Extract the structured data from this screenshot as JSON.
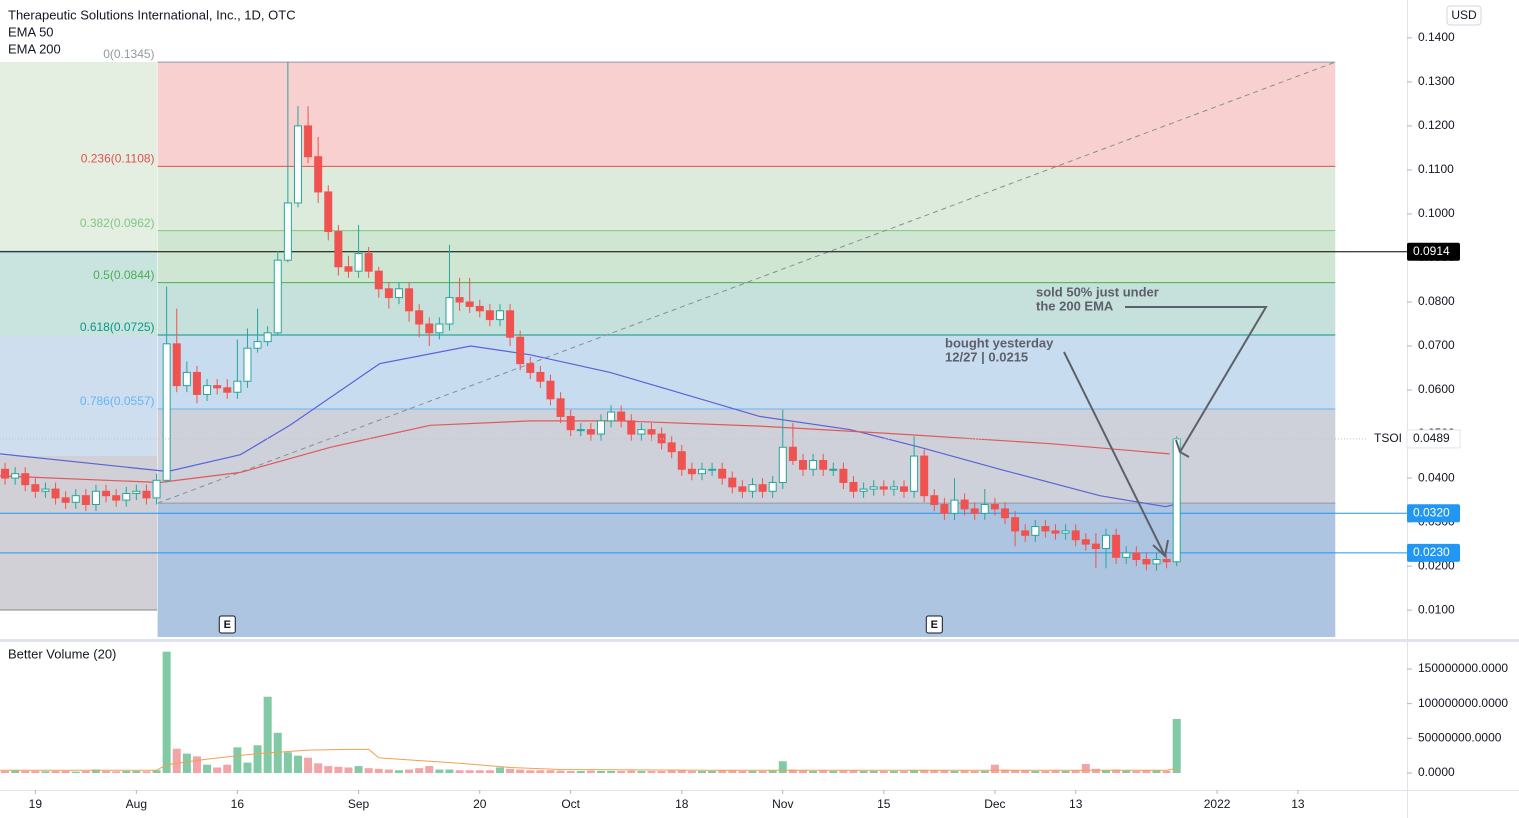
{
  "chart_data": {
    "type": "candlestick",
    "title": "Therapeutic Solutions International, Inc., 1D, OTC",
    "currency": "USD",
    "symbol": "TSOI",
    "last_price": 0.0489,
    "xlim": [
      -0.5,
      138.8
    ],
    "ylim": [
      0.0039,
      0.1486
    ],
    "xticks": [
      {
        "value": 3,
        "label": "19"
      },
      {
        "value": 13,
        "label": "Aug"
      },
      {
        "value": 23,
        "label": "16"
      },
      {
        "value": 35,
        "label": "Sep"
      },
      {
        "value": 47,
        "label": "20"
      },
      {
        "value": 56,
        "label": "Oct"
      },
      {
        "value": 67,
        "label": "18"
      },
      {
        "value": 77,
        "label": "Nov"
      },
      {
        "value": 87,
        "label": "15"
      },
      {
        "value": 98,
        "label": "Dec"
      },
      {
        "value": 106,
        "label": "13"
      },
      {
        "value": 120,
        "label": "2022"
      },
      {
        "value": 128,
        "label": "13"
      }
    ],
    "yticks": [
      {
        "value": 0.01,
        "label": "0.0100"
      },
      {
        "value": 0.02,
        "label": "0.0200"
      },
      {
        "value": 0.03,
        "label": "0.0300"
      },
      {
        "value": 0.04,
        "label": "0.0400"
      },
      {
        "value": 0.05,
        "label": "0.0500"
      },
      {
        "value": 0.06,
        "label": "0.0600"
      },
      {
        "value": 0.07,
        "label": "0.0700"
      },
      {
        "value": 0.08,
        "label": "0.0800"
      },
      {
        "value": 0.09,
        "label": "0.0900"
      },
      {
        "value": 0.1,
        "label": "0.1000"
      },
      {
        "value": 0.11,
        "label": "0.1100"
      },
      {
        "value": 0.12,
        "label": "0.1200"
      },
      {
        "value": 0.13,
        "label": "0.1300"
      },
      {
        "value": 0.14,
        "label": "0.1400"
      }
    ],
    "up_color": "#26a69a",
    "down_color": "#ef5350",
    "open": [
      0.042,
      0.04,
      0.041,
      0.0385,
      0.037,
      0.0375,
      0.0355,
      0.0345,
      0.036,
      0.034,
      0.037,
      0.036,
      0.035,
      0.0365,
      0.037,
      0.0355,
      0.0395,
      0.0705,
      0.061,
      0.064,
      0.059,
      0.061,
      0.0605,
      0.0595,
      0.062,
      0.0695,
      0.071,
      0.073,
      0.0895,
      0.1025,
      0.12,
      0.113,
      0.105,
      0.096,
      0.088,
      0.087,
      0.091,
      0.087,
      0.083,
      0.081,
      0.083,
      0.078,
      0.075,
      0.073,
      0.075,
      0.081,
      0.08,
      0.079,
      0.078,
      0.076,
      0.078,
      0.072,
      0.066,
      0.064,
      0.062,
      0.058,
      0.054,
      0.051,
      0.051,
      0.05,
      0.053,
      0.055,
      0.053,
      0.05,
      0.051,
      0.05,
      0.048,
      0.046,
      0.042,
      0.041,
      0.042,
      0.042,
      0.04,
      0.038,
      0.037,
      0.0385,
      0.037,
      0.039,
      0.047,
      0.044,
      0.042,
      0.044,
      0.042,
      0.042,
      0.039,
      0.037,
      0.0375,
      0.038,
      0.0375,
      0.038,
      0.037,
      0.045,
      0.036,
      0.034,
      0.032,
      0.035,
      0.033,
      0.032,
      0.034,
      0.033,
      0.031,
      0.028,
      0.027,
      0.029,
      0.028,
      0.0275,
      0.028,
      0.026,
      0.025,
      0.024,
      0.027,
      0.022,
      0.023,
      0.0215,
      0.0205,
      0.0215,
      0.021
    ],
    "high": [
      0.0435,
      0.0425,
      0.0425,
      0.04,
      0.039,
      0.039,
      0.037,
      0.0375,
      0.0375,
      0.0385,
      0.0385,
      0.0375,
      0.038,
      0.0385,
      0.0385,
      0.041,
      0.0835,
      0.0785,
      0.0665,
      0.0655,
      0.0625,
      0.0625,
      0.0625,
      0.0715,
      0.074,
      0.0785,
      0.0745,
      0.0915,
      0.1345,
      0.1245,
      0.1245,
      0.1175,
      0.1065,
      0.0975,
      0.0905,
      0.0975,
      0.0925,
      0.088,
      0.0845,
      0.0845,
      0.0845,
      0.0795,
      0.0765,
      0.0765,
      0.093,
      0.0855,
      0.0855,
      0.0805,
      0.0795,
      0.0795,
      0.0795,
      0.0735,
      0.0675,
      0.0655,
      0.0635,
      0.0595,
      0.0555,
      0.0525,
      0.0525,
      0.0545,
      0.0565,
      0.0565,
      0.0545,
      0.0525,
      0.0525,
      0.0515,
      0.0495,
      0.0475,
      0.0435,
      0.0435,
      0.0435,
      0.0435,
      0.0415,
      0.0395,
      0.04,
      0.04,
      0.0405,
      0.0555,
      0.0525,
      0.0455,
      0.0455,
      0.0455,
      0.0435,
      0.0435,
      0.0405,
      0.039,
      0.0395,
      0.0395,
      0.0395,
      0.0395,
      0.0495,
      0.0465,
      0.0375,
      0.0355,
      0.04,
      0.0365,
      0.0345,
      0.0375,
      0.0355,
      0.0345,
      0.0325,
      0.0295,
      0.0305,
      0.0305,
      0.0295,
      0.0295,
      0.0295,
      0.0275,
      0.0275,
      0.0285,
      0.0285,
      0.0245,
      0.0245,
      0.023,
      0.023,
      0.0225,
      0.0495
    ],
    "low": [
      0.0385,
      0.0385,
      0.037,
      0.0355,
      0.0355,
      0.034,
      0.033,
      0.033,
      0.0325,
      0.0325,
      0.0345,
      0.0335,
      0.0335,
      0.035,
      0.034,
      0.034,
      0.039,
      0.0595,
      0.0595,
      0.057,
      0.0575,
      0.059,
      0.058,
      0.058,
      0.0605,
      0.0685,
      0.07,
      0.0725,
      0.089,
      0.1015,
      0.1115,
      0.1025,
      0.094,
      0.086,
      0.0855,
      0.0855,
      0.0855,
      0.081,
      0.0785,
      0.0795,
      0.0755,
      0.072,
      0.07,
      0.0715,
      0.0735,
      0.078,
      0.0775,
      0.0765,
      0.0745,
      0.0745,
      0.07,
      0.0645,
      0.0625,
      0.0605,
      0.0565,
      0.0525,
      0.0495,
      0.0495,
      0.0485,
      0.0485,
      0.0515,
      0.0515,
      0.0485,
      0.0485,
      0.0485,
      0.0465,
      0.0445,
      0.0405,
      0.0395,
      0.0395,
      0.0405,
      0.0385,
      0.0365,
      0.0355,
      0.0355,
      0.0355,
      0.0355,
      0.0375,
      0.043,
      0.0405,
      0.0405,
      0.0405,
      0.0405,
      0.0375,
      0.0355,
      0.0355,
      0.036,
      0.036,
      0.036,
      0.0355,
      0.0355,
      0.0345,
      0.0325,
      0.0305,
      0.0305,
      0.0315,
      0.0305,
      0.0305,
      0.0315,
      0.0295,
      0.0245,
      0.0255,
      0.0255,
      0.0265,
      0.026,
      0.026,
      0.0245,
      0.0235,
      0.0195,
      0.0195,
      0.0205,
      0.0205,
      0.02,
      0.019,
      0.019,
      0.0195,
      0.02
    ],
    "close": [
      0.04,
      0.041,
      0.0385,
      0.037,
      0.0375,
      0.0355,
      0.0345,
      0.036,
      0.034,
      0.037,
      0.036,
      0.035,
      0.0365,
      0.037,
      0.0355,
      0.0395,
      0.0705,
      0.061,
      0.064,
      0.059,
      0.061,
      0.0605,
      0.0595,
      0.062,
      0.0695,
      0.071,
      0.073,
      0.0895,
      0.1025,
      0.12,
      0.113,
      0.105,
      0.096,
      0.088,
      0.087,
      0.091,
      0.087,
      0.083,
      0.081,
      0.083,
      0.078,
      0.075,
      0.073,
      0.075,
      0.081,
      0.08,
      0.079,
      0.078,
      0.076,
      0.078,
      0.072,
      0.066,
      0.064,
      0.062,
      0.058,
      0.054,
      0.051,
      0.051,
      0.05,
      0.053,
      0.055,
      0.053,
      0.05,
      0.051,
      0.05,
      0.048,
      0.046,
      0.042,
      0.041,
      0.042,
      0.042,
      0.04,
      0.038,
      0.037,
      0.0385,
      0.037,
      0.039,
      0.047,
      0.044,
      0.042,
      0.044,
      0.042,
      0.042,
      0.039,
      0.037,
      0.0375,
      0.038,
      0.0375,
      0.038,
      0.037,
      0.045,
      0.036,
      0.034,
      0.032,
      0.035,
      0.033,
      0.032,
      0.034,
      0.033,
      0.031,
      0.028,
      0.027,
      0.029,
      0.028,
      0.0275,
      0.028,
      0.026,
      0.025,
      0.024,
      0.027,
      0.022,
      0.023,
      0.0215,
      0.0205,
      0.0215,
      0.021,
      0.0489
    ],
    "volume": [
      3000000,
      4000000,
      3000000,
      3000000,
      2500000,
      3000000,
      3000000,
      2000000,
      3000000,
      5000000,
      3000000,
      2500000,
      3000000,
      3000000,
      2500000,
      4000000,
      175000000,
      35000000,
      28000000,
      24000000,
      12000000,
      8000000,
      12000000,
      37000000,
      15000000,
      40000000,
      110000000,
      58000000,
      30000000,
      25000000,
      22000000,
      14000000,
      10000000,
      9000000,
      8000000,
      10000000,
      7000000,
      6000000,
      5000000,
      4000000,
      5000000,
      7000000,
      10000000,
      5000000,
      5000000,
      4000000,
      4000000,
      4000000,
      4000000,
      8000000,
      6000000,
      5000000,
      4000000,
      4000000,
      4000000,
      3500000,
      3000000,
      3000000,
      3500000,
      3000000,
      3000000,
      3000000,
      3500000,
      3000000,
      3000000,
      3000000,
      3500000,
      4000000,
      3000000,
      3000000,
      3000000,
      3500000,
      4000000,
      3000000,
      3000000,
      3000000,
      3500000,
      17000000,
      5000000,
      4000000,
      3000000,
      3500000,
      3000000,
      3500000,
      4000000,
      3000000,
      3000000,
      3000000,
      3000000,
      3000000,
      4000000,
      4500000,
      4000000,
      3500000,
      3000000,
      3500000,
      3000000,
      3000000,
      12000000,
      5000000,
      4000000,
      3500000,
      3000000,
      3000000,
      3500000,
      3000000,
      3500000,
      13000000,
      6000000,
      4000000,
      5000000,
      3500000,
      3000000,
      4000000,
      3500000,
      3000000,
      78000000
    ],
    "series": [
      {
        "name": "EMA 50",
        "color": "#5b63d6",
        "x": [
          -0.5,
          16.1,
          23.3,
          28.2,
          37.1,
          46.1,
          52,
          59.9,
          68.8,
          74.7,
          83.7,
          90.6,
          98.5,
          108.4,
          114.9,
          115.8
        ],
        "values": [
          0.0455,
          0.0415,
          0.0453,
          0.052,
          0.066,
          0.07,
          0.068,
          0.064,
          0.058,
          0.054,
          0.051,
          0.047,
          0.042,
          0.036,
          0.0335,
          0.034
        ]
      },
      {
        "name": "EMA 200",
        "color": "#e05a5a",
        "x": [
          -0.5,
          15.3,
          23.3,
          32.2,
          42.1,
          52,
          60.9,
          74.7,
          88.6,
          103.5,
          115.3
        ],
        "values": [
          0.0405,
          0.039,
          0.0413,
          0.047,
          0.052,
          0.053,
          0.053,
          0.0518,
          0.05,
          0.0478,
          0.0455
        ]
      }
    ],
    "fib": {
      "x_start": 15.1,
      "x_end": 131.7,
      "base": 0.0343,
      "base_color": "#9598a1",
      "below_color": "#adc5e0",
      "levels": [
        {
          "value": 0.1345,
          "label": "0(0.1345)",
          "color": "#9598a1",
          "fill": "#f7d0cf"
        },
        {
          "value": 0.1108,
          "label": "0.236(0.1108)",
          "color": "#e0524f",
          "fill": "#dcebdc"
        },
        {
          "value": 0.0962,
          "label": "0.382(0.0962)",
          "color": "#81c784",
          "fill": "#cfe6d3"
        },
        {
          "value": 0.0844,
          "label": "0.5(0.0844)",
          "color": "#4caf50",
          "fill": "#c6e0dc"
        },
        {
          "value": 0.0725,
          "label": "0.618(0.0725)",
          "color": "#089981",
          "fill": "#c8dcef"
        },
        {
          "value": 0.0557,
          "label": "0.786(0.0557)",
          "color": "#64b5f6",
          "fill": "#ced1d9"
        }
      ]
    },
    "price_lines": [
      {
        "value": 0.0914,
        "label": "0.0914",
        "color": "#000000"
      },
      {
        "value": 0.032,
        "label": "0.0320",
        "color": "#2196f3"
      },
      {
        "value": 0.023,
        "label": "0.0230",
        "color": "#2196f3"
      }
    ],
    "earnings": [
      {
        "x": 22,
        "label": "E"
      },
      {
        "x": 92,
        "label": "E"
      }
    ],
    "annotations": [
      {
        "lines": [
          "sold 50% just under",
          "the 200 EMA"
        ]
      },
      {
        "lines": [
          "bought yesterday",
          "12/27 | 0.0215"
        ]
      }
    ],
    "volume_pane": {
      "title": "Better Volume (20)",
      "ylim": [
        -24500000,
        184600000
      ],
      "yticks": [
        {
          "value": 0,
          "label": "0.0000"
        },
        {
          "value": 50000000,
          "label": "50000000.0000"
        },
        {
          "value": 100000000,
          "label": "100000000.0000"
        },
        {
          "value": 150000000,
          "label": "150000000.0000"
        }
      ],
      "up_color": "#82c9a5",
      "down_color": "#f2a4a6",
      "ma": {
        "color": "#f0a050",
        "x": [
          -0.5,
          15,
          16,
          20,
          25,
          30,
          34,
          36,
          37,
          45,
          50,
          55,
          70,
          100,
          115,
          116
        ],
        "values": [
          4000000,
          4000000,
          12000000,
          20000000,
          28000000,
          33000000,
          34000000,
          34000000,
          22000000,
          14000000,
          8000000,
          5000000,
          4000000,
          4000000,
          4000000,
          7000000
        ]
      }
    }
  }
}
